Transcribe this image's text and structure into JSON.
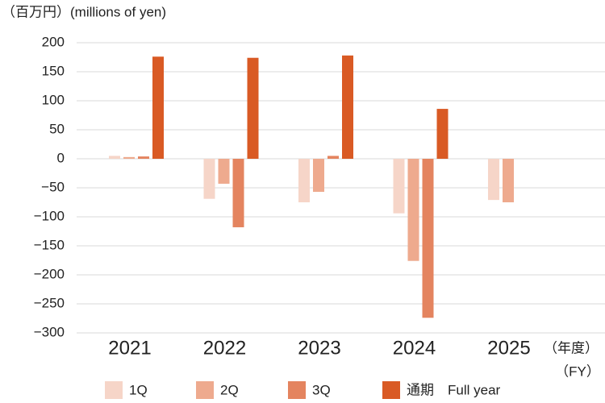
{
  "chart_data": {
    "type": "bar",
    "y_axis_label": "（百万円）(millions of yen)",
    "x_axis_label": "（年度）",
    "x_axis_label_2": "（FY）",
    "categories": [
      "2021",
      "2022",
      "2023",
      "2024",
      "2025"
    ],
    "series": [
      {
        "name": "1Q",
        "color": "#f6d5c8",
        "values": [
          5,
          -69,
          -75,
          -94,
          -71
        ]
      },
      {
        "name": "2Q",
        "color": "#eeaa8e",
        "values": [
          3,
          -43,
          -57,
          -176,
          -75
        ]
      },
      {
        "name": "3Q",
        "color": "#e4845f",
        "values": [
          4,
          -118,
          5,
          -274,
          null
        ]
      },
      {
        "name": "通期　Full year",
        "color": "#d95a24",
        "values": [
          176,
          174,
          178,
          86,
          null
        ]
      }
    ],
    "ylim": [
      -300,
      200
    ],
    "yticks": [
      {
        "value": -300,
        "label": "−300"
      },
      {
        "value": -250,
        "label": "−250"
      },
      {
        "value": -200,
        "label": "−200"
      },
      {
        "value": -150,
        "label": "−150"
      },
      {
        "value": -100,
        "label": "−100"
      },
      {
        "value": -50,
        "label": "−50"
      },
      0,
      50,
      100,
      150,
      200
    ],
    "grid": true
  }
}
